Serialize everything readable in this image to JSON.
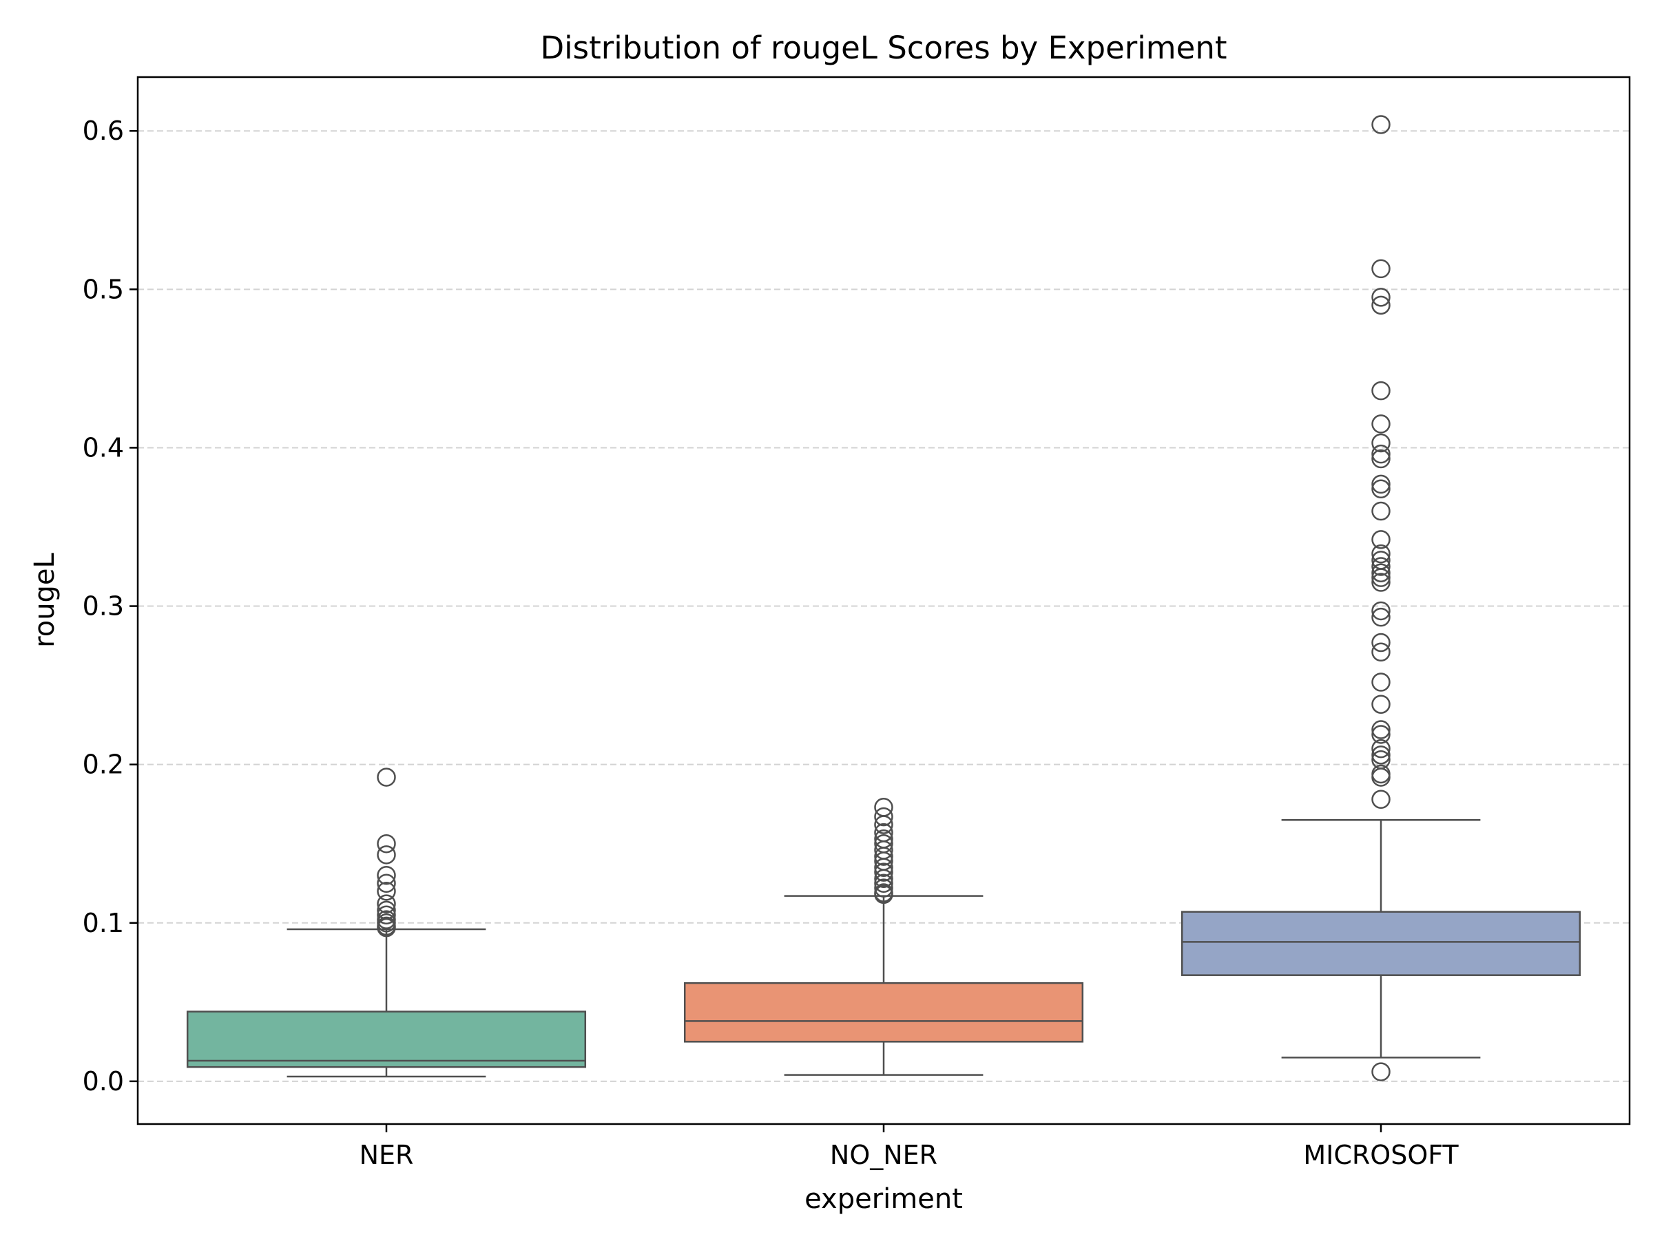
{
  "chart_data": {
    "type": "box",
    "title": "Distribution of rougeL Scores by Experiment",
    "xlabel": "experiment",
    "ylabel": "rougeL",
    "ylim": [
      -0.027,
      0.634
    ],
    "yticks": [
      0.0,
      0.1,
      0.2,
      0.3,
      0.4,
      0.5,
      0.6
    ],
    "ytick_labels": [
      "0.0",
      "0.1",
      "0.2",
      "0.3",
      "0.4",
      "0.5",
      "0.6"
    ],
    "grid": {
      "axis": "y",
      "style": "dashed",
      "color": "#d3d3d3"
    },
    "categories": [
      "NER",
      "NO_NER",
      "MICROSOFT"
    ],
    "series": [
      {
        "category": "NER",
        "color": "#73b59f",
        "whisker_low": 0.003,
        "q1": 0.009,
        "median": 0.013,
        "q3": 0.044,
        "whisker_high": 0.096,
        "outliers": [
          0.192,
          0.15,
          0.143,
          0.13,
          0.125,
          0.12,
          0.112,
          0.108,
          0.105,
          0.102,
          0.1,
          0.098,
          0.097
        ]
      },
      {
        "category": "NO_NER",
        "color": "#e99474",
        "whisker_low": 0.004,
        "q1": 0.025,
        "median": 0.038,
        "q3": 0.062,
        "whisker_high": 0.117,
        "outliers": [
          0.173,
          0.167,
          0.162,
          0.157,
          0.153,
          0.15,
          0.146,
          0.142,
          0.139,
          0.135,
          0.132,
          0.128,
          0.125,
          0.122,
          0.119,
          0.118
        ]
      },
      {
        "category": "MICROSOFT",
        "color": "#95a5c6",
        "whisker_low": 0.015,
        "q1": 0.067,
        "median": 0.088,
        "q3": 0.107,
        "whisker_high": 0.165,
        "outliers": [
          0.604,
          0.513,
          0.495,
          0.49,
          0.436,
          0.415,
          0.403,
          0.396,
          0.393,
          0.377,
          0.374,
          0.36,
          0.342,
          0.333,
          0.329,
          0.325,
          0.321,
          0.318,
          0.315,
          0.297,
          0.293,
          0.277,
          0.271,
          0.252,
          0.238,
          0.222,
          0.219,
          0.21,
          0.206,
          0.203,
          0.194,
          0.192,
          0.178,
          0.006
        ]
      }
    ]
  }
}
